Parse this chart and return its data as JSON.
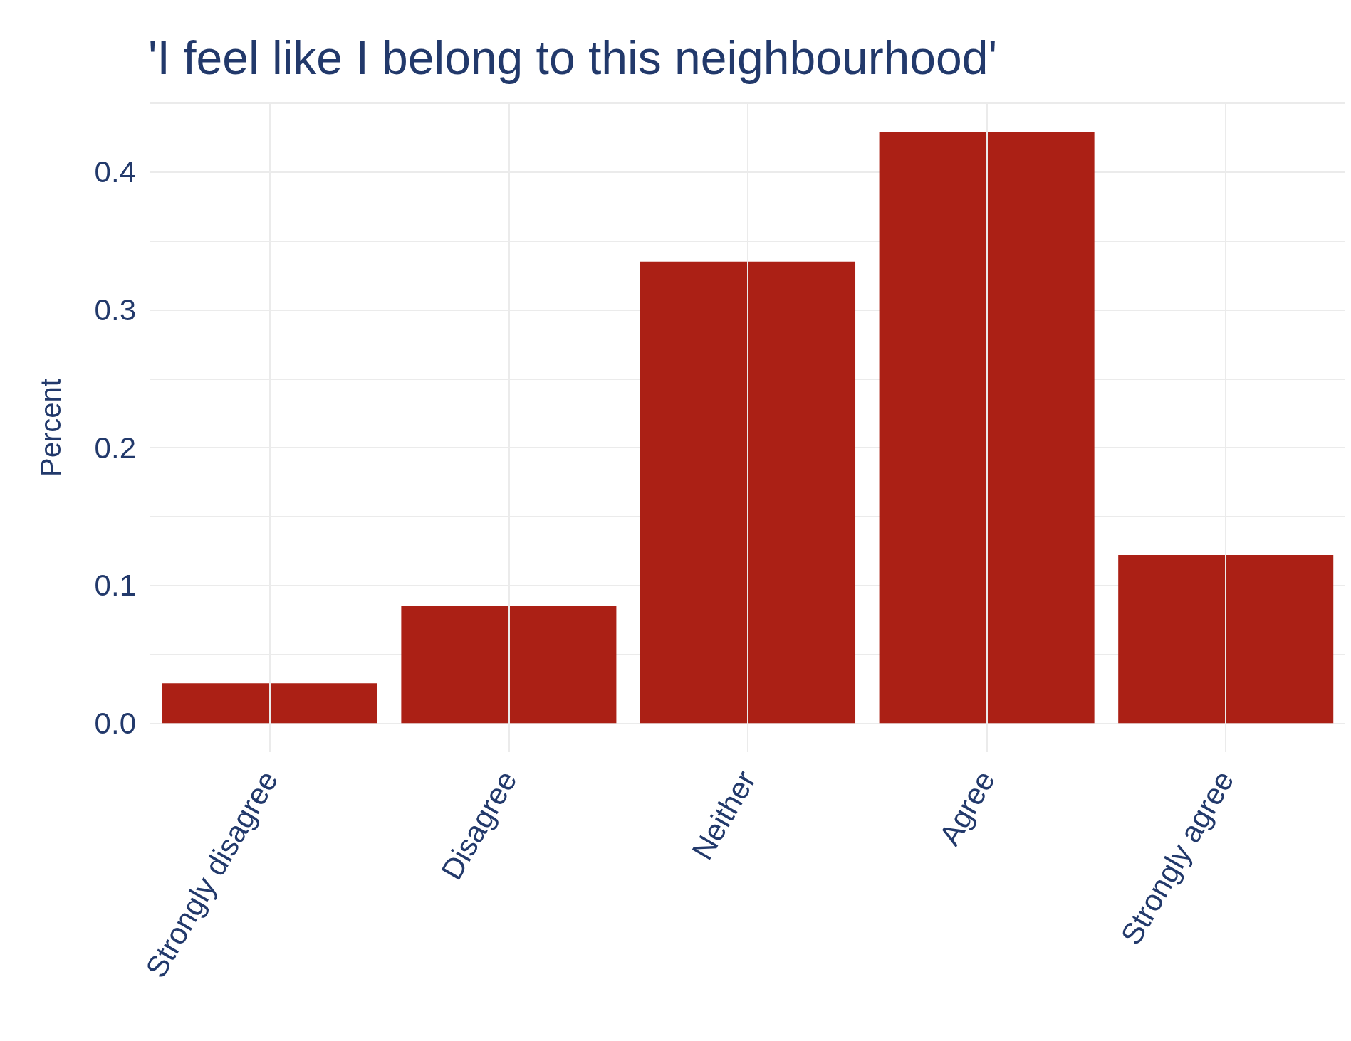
{
  "chart_data": {
    "type": "bar",
    "title": "'I feel like I belong to this neighbourhood'",
    "ylabel": "Percent",
    "categories": [
      "Strongly disagree",
      "Disagree",
      "Neither",
      "Agree",
      "Strongly agree"
    ],
    "values": [
      0.029,
      0.085,
      0.335,
      0.429,
      0.122
    ],
    "color": "#ab2015",
    "ylim": [
      -0.021,
      0.45
    ],
    "yticks": [
      {
        "value": 0,
        "label": "0.0"
      },
      {
        "value": 0.05,
        "label": null
      },
      0.1,
      {
        "value": 0.15,
        "label": null
      },
      0.2,
      {
        "value": 0.25,
        "label": null
      },
      0.3,
      {
        "value": 0.35,
        "label": null
      },
      0.4,
      {
        "value": 0.45,
        "label": null
      }
    ],
    "grid": true
  }
}
